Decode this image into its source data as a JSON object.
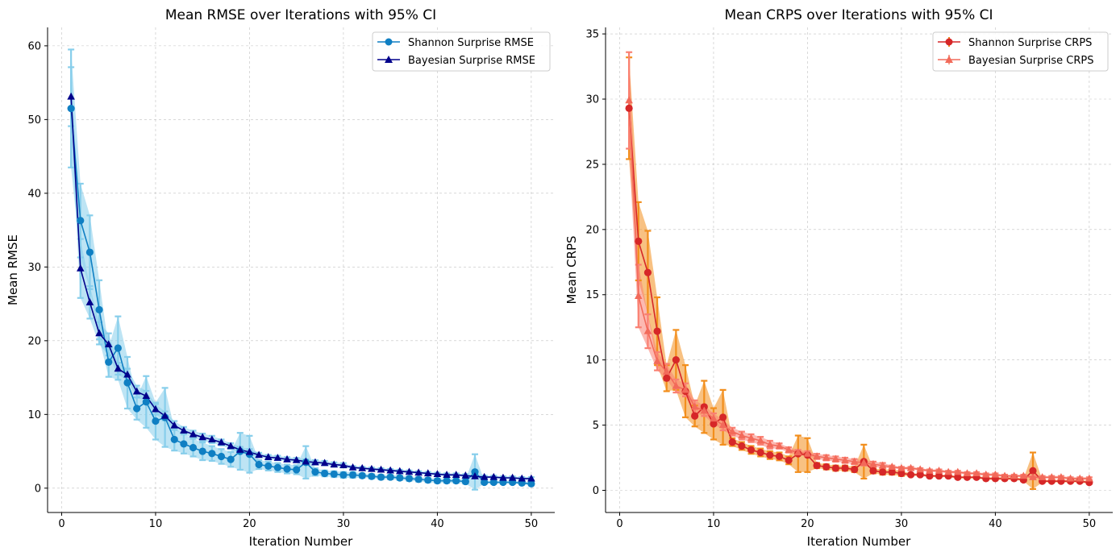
{
  "chart_data": [
    {
      "type": "line",
      "title": "Mean RMSE over Iterations with 95% CI",
      "xlabel": "Iteration Number",
      "ylabel": "Mean RMSE",
      "xlim": [
        -1.5,
        52.5
      ],
      "ylim": [
        -3.3,
        62.5
      ],
      "xticks": [
        0,
        10,
        20,
        30,
        40,
        50
      ],
      "yticks": [
        0,
        10,
        20,
        30,
        40,
        50,
        60
      ],
      "grid": true,
      "legend_position": "top-right",
      "band_color": "#87ceeb",
      "series": [
        {
          "name": "Shannon Surprise RMSE",
          "marker": "circle",
          "color": "#0f7fc3",
          "x": [
            1,
            2,
            3,
            4,
            5,
            6,
            7,
            8,
            9,
            10,
            11,
            12,
            13,
            14,
            15,
            16,
            17,
            18,
            19,
            20,
            21,
            22,
            23,
            24,
            25,
            26,
            27,
            28,
            29,
            30,
            31,
            32,
            33,
            34,
            35,
            36,
            37,
            38,
            39,
            40,
            41,
            42,
            43,
            44,
            45,
            46,
            47,
            48,
            49,
            50
          ],
          "values": [
            51.5,
            36.3,
            32.0,
            24.2,
            17.1,
            19.0,
            14.3,
            10.8,
            11.7,
            9.1,
            9.6,
            6.6,
            6.0,
            5.5,
            5.0,
            4.7,
            4.3,
            3.9,
            5.0,
            4.6,
            3.2,
            3.0,
            2.8,
            2.6,
            2.5,
            3.5,
            2.2,
            2.0,
            1.9,
            1.8,
            1.8,
            1.7,
            1.6,
            1.5,
            1.5,
            1.4,
            1.3,
            1.2,
            1.1,
            1.0,
            1.0,
            1.0,
            0.9,
            2.2,
            0.8,
            0.8,
            0.8,
            0.8,
            0.7,
            0.6
          ],
          "ci_half": [
            8.0,
            5.0,
            5.0,
            4.0,
            2.0,
            4.3,
            3.5,
            1.5,
            3.5,
            2.5,
            4.0,
            1.5,
            1.3,
            1.2,
            1.2,
            1.0,
            1.0,
            1.0,
            2.5,
            2.5,
            0.6,
            0.6,
            0.6,
            0.6,
            0.6,
            2.2,
            0.5,
            0.4,
            0.4,
            0.4,
            0.4,
            0.3,
            0.3,
            0.3,
            0.3,
            0.3,
            0.3,
            0.3,
            0.3,
            0.3,
            0.3,
            0.3,
            0.3,
            2.4,
            0.2,
            0.2,
            0.2,
            0.2,
            0.2,
            0.2
          ]
        },
        {
          "name": "Bayesian Surprise RMSE",
          "marker": "triangle",
          "color": "#00008b",
          "x": [
            1,
            2,
            3,
            4,
            5,
            6,
            7,
            8,
            9,
            10,
            11,
            12,
            13,
            14,
            15,
            16,
            17,
            18,
            19,
            20,
            21,
            22,
            23,
            24,
            25,
            26,
            27,
            28,
            29,
            30,
            31,
            32,
            33,
            34,
            35,
            36,
            37,
            38,
            39,
            40,
            41,
            42,
            43,
            44,
            45,
            46,
            47,
            48,
            49,
            50
          ],
          "values": [
            53.1,
            29.8,
            25.2,
            21.0,
            19.5,
            16.2,
            15.4,
            13.1,
            12.5,
            10.7,
            9.8,
            8.5,
            7.8,
            7.3,
            6.9,
            6.6,
            6.2,
            5.7,
            5.2,
            4.9,
            4.5,
            4.2,
            4.1,
            3.9,
            3.8,
            3.6,
            3.5,
            3.4,
            3.2,
            3.1,
            2.8,
            2.7,
            2.6,
            2.5,
            2.4,
            2.3,
            2.2,
            2.1,
            2.0,
            1.9,
            1.8,
            1.8,
            1.7,
            1.6,
            1.5,
            1.5,
            1.4,
            1.4,
            1.3,
            1.3
          ],
          "ci_half": [
            4.0,
            4.0,
            2.2,
            1.5,
            1.5,
            0.8,
            0.8,
            0.8,
            0.7,
            0.7,
            0.6,
            0.6,
            0.5,
            0.5,
            0.5,
            0.5,
            0.4,
            0.4,
            0.4,
            0.4,
            0.3,
            0.3,
            0.3,
            0.3,
            0.3,
            0.3,
            0.3,
            0.3,
            0.3,
            0.3,
            0.2,
            0.2,
            0.2,
            0.2,
            0.2,
            0.2,
            0.2,
            0.2,
            0.2,
            0.2,
            0.2,
            0.2,
            0.2,
            0.2,
            0.2,
            0.2,
            0.2,
            0.2,
            0.2,
            0.2
          ]
        }
      ]
    },
    {
      "type": "line",
      "title": "Mean CRPS over Iterations with 95% CI",
      "xlabel": "Iteration Number",
      "ylabel": "Mean CRPS",
      "xlim": [
        -1.5,
        52.5
      ],
      "ylim": [
        -1.7,
        35.5
      ],
      "xticks": [
        0,
        10,
        20,
        30,
        40,
        50
      ],
      "yticks": [
        0,
        5,
        10,
        15,
        20,
        25,
        30,
        35
      ],
      "grid": true,
      "legend_position": "top-right",
      "series": [
        {
          "name": "Shannon Surprise CRPS",
          "marker": "circle",
          "color": "#d62728",
          "band_color": "#f28e1c",
          "x": [
            1,
            2,
            3,
            4,
            5,
            6,
            7,
            8,
            9,
            10,
            11,
            12,
            13,
            14,
            15,
            16,
            17,
            18,
            19,
            20,
            21,
            22,
            23,
            24,
            25,
            26,
            27,
            28,
            29,
            30,
            31,
            32,
            33,
            34,
            35,
            36,
            37,
            38,
            39,
            40,
            41,
            42,
            43,
            44,
            45,
            46,
            47,
            48,
            49,
            50
          ],
          "values": [
            29.3,
            19.1,
            16.7,
            12.2,
            8.6,
            10.0,
            7.6,
            5.7,
            6.4,
            5.1,
            5.6,
            3.7,
            3.4,
            3.1,
            2.9,
            2.7,
            2.6,
            2.3,
            2.8,
            2.7,
            1.9,
            1.8,
            1.7,
            1.7,
            1.6,
            2.2,
            1.5,
            1.4,
            1.4,
            1.3,
            1.2,
            1.2,
            1.1,
            1.1,
            1.1,
            1.0,
            1.0,
            1.0,
            0.9,
            0.9,
            0.9,
            0.9,
            0.8,
            1.5,
            0.7,
            0.7,
            0.7,
            0.7,
            0.7,
            0.6
          ],
          "ci_half": [
            3.9,
            3.0,
            3.2,
            2.6,
            1.0,
            2.3,
            2.0,
            0.8,
            2.0,
            1.2,
            2.1,
            0.3,
            0.3,
            0.3,
            0.3,
            0.3,
            0.3,
            0.3,
            1.4,
            1.3,
            0.2,
            0.2,
            0.2,
            0.2,
            0.2,
            1.3,
            0.2,
            0.2,
            0.2,
            0.2,
            0.1,
            0.1,
            0.1,
            0.1,
            0.1,
            0.1,
            0.1,
            0.1,
            0.1,
            0.1,
            0.1,
            0.1,
            0.1,
            1.4,
            0.1,
            0.1,
            0.1,
            0.1,
            0.1,
            0.1
          ]
        },
        {
          "name": "Bayesian Surprise CRPS",
          "marker": "triangle",
          "color": "#f26a5a",
          "band_color": "#fa8072",
          "x": [
            1,
            2,
            3,
            4,
            5,
            6,
            7,
            8,
            9,
            10,
            11,
            12,
            13,
            14,
            15,
            16,
            17,
            18,
            19,
            20,
            21,
            22,
            23,
            24,
            25,
            26,
            27,
            28,
            29,
            30,
            31,
            32,
            33,
            34,
            35,
            36,
            37,
            38,
            39,
            40,
            41,
            42,
            43,
            44,
            45,
            46,
            47,
            48,
            49,
            50
          ],
          "values": [
            29.9,
            14.9,
            12.2,
            9.9,
            9.1,
            8.0,
            7.7,
            6.4,
            6.1,
            5.5,
            5.0,
            4.5,
            4.2,
            4.0,
            3.8,
            3.5,
            3.4,
            3.1,
            2.9,
            2.8,
            2.6,
            2.5,
            2.4,
            2.3,
            2.2,
            2.1,
            2.0,
            1.9,
            1.8,
            1.7,
            1.7,
            1.6,
            1.5,
            1.5,
            1.4,
            1.4,
            1.3,
            1.3,
            1.2,
            1.2,
            1.1,
            1.1,
            1.1,
            1.0,
            1.0,
            1.0,
            1.0,
            0.9,
            0.9,
            0.9
          ],
          "ci_half": [
            3.7,
            2.4,
            1.3,
            0.7,
            0.6,
            0.5,
            0.5,
            0.5,
            0.4,
            0.4,
            0.4,
            0.3,
            0.3,
            0.3,
            0.3,
            0.3,
            0.2,
            0.2,
            0.2,
            0.2,
            0.2,
            0.2,
            0.2,
            0.2,
            0.2,
            0.2,
            0.2,
            0.2,
            0.1,
            0.1,
            0.1,
            0.1,
            0.1,
            0.1,
            0.1,
            0.1,
            0.1,
            0.1,
            0.1,
            0.1,
            0.1,
            0.1,
            0.1,
            0.1,
            0.1,
            0.1,
            0.1,
            0.1,
            0.1,
            0.1
          ]
        }
      ]
    }
  ]
}
